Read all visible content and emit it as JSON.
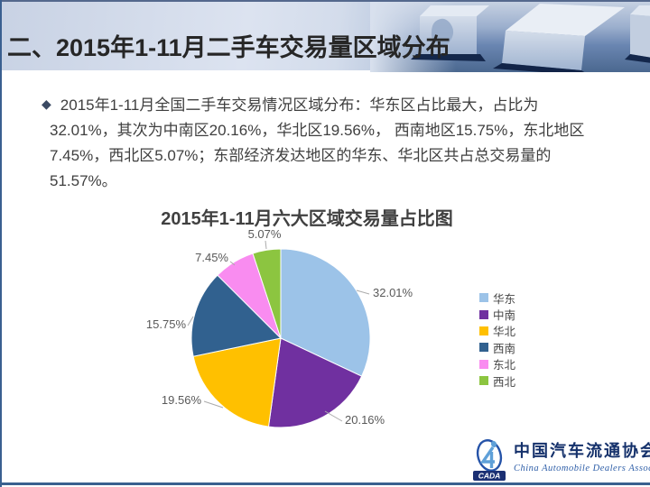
{
  "header": {
    "title": "二、2015年1-11月二手车交易量区域分布"
  },
  "body": {
    "bullet": "◆",
    "lines": [
      "2015年1-11月全国二手车交易情况区域分布：华东区占比最大，占比为",
      "32.01%，其次为中南区20.16%，华北区19.56%， 西南地区15.75%，东北地区",
      "7.45%，西北区5.07%；东部经济发达地区的华东、华北区共占总交易量的",
      "51.57%。"
    ]
  },
  "chart_data": {
    "type": "pie",
    "title": "2015年1-11月六大区域交易量占比图",
    "labels": [
      "华东",
      "中南",
      "华北",
      "西南",
      "东北",
      "西北"
    ],
    "values": [
      32.01,
      20.16,
      19.56,
      15.75,
      7.45,
      5.07
    ],
    "data_labels": [
      "32.01%",
      "20.16%",
      "19.56%",
      "15.75%",
      "7.45%",
      "5.07%"
    ],
    "colors": [
      "#9CC3E8",
      "#7030A0",
      "#FFC000",
      "#31618F",
      "#F98CF0",
      "#8CC540"
    ],
    "start_angle_deg": 0,
    "direction": "clockwise",
    "legend_position": "right"
  },
  "footer": {
    "logo_acronym": "CADA",
    "org_name_zh": "中国汽车流通协会",
    "org_name_en": "China Automobile Dealers Association"
  },
  "theme": {
    "border_blue": "#3A618F",
    "banner_text": "#262626",
    "body_text": "#3F3F3F",
    "label_gray": "#595959"
  }
}
